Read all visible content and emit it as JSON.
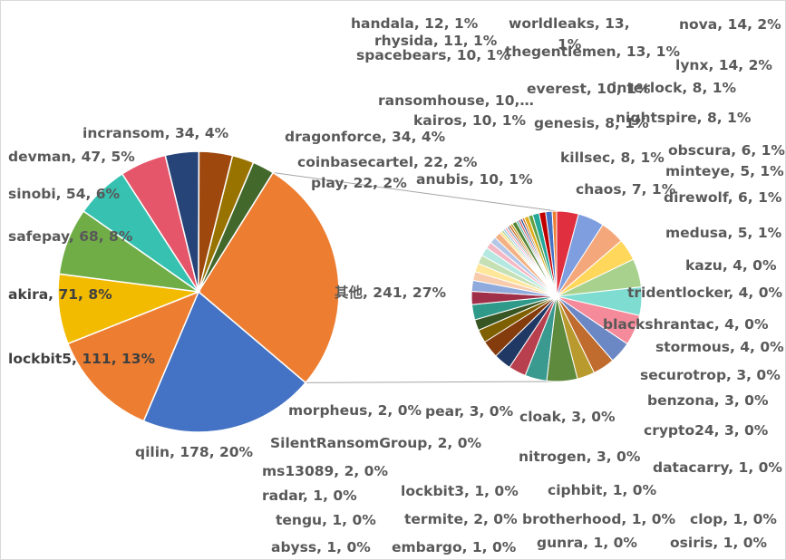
{
  "chart_data": {
    "type": "pie",
    "subtype": "pie-of-pie",
    "title": "",
    "main_pie": [
      {
        "name": "其他",
        "value": 241,
        "percent": "27%",
        "color": "#ed7d31"
      },
      {
        "name": "qilin",
        "value": 178,
        "percent": "20%",
        "color": "#4472c4"
      },
      {
        "name": "lockbit5",
        "value": 111,
        "percent": "13%",
        "color": "#ed7d31"
      },
      {
        "name": "akira",
        "value": 71,
        "percent": "8%",
        "color": "#f2bb00"
      },
      {
        "name": "safepay",
        "value": 68,
        "percent": "8%",
        "color": "#70ad47"
      },
      {
        "name": "sinobi",
        "value": 54,
        "percent": "6%",
        "color": "#36c1b1"
      },
      {
        "name": "devman",
        "value": 47,
        "percent": "5%",
        "color": "#e5566a"
      },
      {
        "name": "incransom",
        "value": 34,
        "percent": "4%",
        "color": "#264478"
      },
      {
        "name": "dragonforce",
        "value": 34,
        "percent": "4%",
        "color": "#9e480e"
      },
      {
        "name": "coinbasecartel",
        "value": 22,
        "percent": "2%",
        "color": "#997300"
      },
      {
        "name": "play",
        "value": 22,
        "percent": "2%",
        "color": "#43682b"
      }
    ],
    "secondary_pie_label": "其他",
    "secondary_pie": [
      {
        "name": "anubis",
        "value": 10,
        "percent": "1%",
        "color": "#e03040"
      },
      {
        "name": "handala",
        "value": 12,
        "percent": "1%",
        "color": "#7f9ee0"
      },
      {
        "name": "rhysida",
        "value": 11,
        "percent": "1%",
        "color": "#f4a77a"
      },
      {
        "name": "spacebears",
        "value": 10,
        "percent": "1%",
        "color": "#ffd75a"
      },
      {
        "name": "worldleaks",
        "value": 13,
        "percent": "1%",
        "color": "#a9d18e"
      },
      {
        "name": "thegentlemen",
        "value": 13,
        "percent": "1%",
        "color": "#7fdcd0"
      },
      {
        "name": "nova",
        "value": 14,
        "percent": "2%",
        "color": "#f48a9a"
      },
      {
        "name": "ransomhouse",
        "value": 10,
        "percent": "1%",
        "color": "#6c88c4"
      },
      {
        "name": "everest",
        "value": 10,
        "percent": "1%",
        "color": "#c06c2e"
      },
      {
        "name": "interlock",
        "value": 8,
        "percent": "1%",
        "color": "#b89a2e"
      },
      {
        "name": "lynx",
        "value": 14,
        "percent": "2%",
        "color": "#5e8a3e"
      },
      {
        "name": "kairos",
        "value": 10,
        "percent": "1%",
        "color": "#3a9a90"
      },
      {
        "name": "genesis",
        "value": 8,
        "percent": "1%",
        "color": "#b8404e"
      },
      {
        "name": "nightspire",
        "value": 8,
        "percent": "1%",
        "color": "#1f3864"
      },
      {
        "name": "killsec",
        "value": 8,
        "percent": "1%",
        "color": "#843c0c"
      },
      {
        "name": "obscura",
        "value": 6,
        "percent": "1%",
        "color": "#7f6000"
      },
      {
        "name": "minteye",
        "value": 5,
        "percent": "1%",
        "color": "#375623"
      },
      {
        "name": "chaos",
        "value": 7,
        "percent": "1%",
        "color": "#2f9a8a"
      },
      {
        "name": "direwolf",
        "value": 6,
        "percent": "1%",
        "color": "#a0304a"
      },
      {
        "name": "medusa",
        "value": 5,
        "percent": "1%",
        "color": "#8faadc"
      },
      {
        "name": "kazu",
        "value": 4,
        "percent": "0%",
        "color": "#f8cbad"
      },
      {
        "name": "tridentlocker",
        "value": 4,
        "percent": "0%",
        "color": "#ffe699"
      },
      {
        "name": "blackshrantac",
        "value": 4,
        "percent": "0%",
        "color": "#c5e0b4"
      },
      {
        "name": "stormous",
        "value": 4,
        "percent": "0%",
        "color": "#b4e8e0"
      },
      {
        "name": "securotrop",
        "value": 3,
        "percent": "0%",
        "color": "#f4b8c4"
      },
      {
        "name": "benzona",
        "value": 3,
        "percent": "0%",
        "color": "#b4c7e7"
      },
      {
        "name": "crypto24",
        "value": 3,
        "percent": "0%",
        "color": "#f4b183"
      },
      {
        "name": "datacarry",
        "value": 1,
        "percent": "0%",
        "color": "#ffd966"
      },
      {
        "name": "osiris",
        "value": 1,
        "percent": "0%",
        "color": "#a9d18e"
      },
      {
        "name": "clop",
        "value": 1,
        "percent": "0%",
        "color": "#9dc3e6"
      },
      {
        "name": "gunra",
        "value": 1,
        "percent": "0%",
        "color": "#f8a0b0"
      },
      {
        "name": "ciphbit",
        "value": 1,
        "percent": "0%",
        "color": "#8497b0"
      },
      {
        "name": "brotherhood",
        "value": 1,
        "percent": "0%",
        "color": "#c55a11"
      },
      {
        "name": "embargo",
        "value": 1,
        "percent": "0%",
        "color": "#bf9000"
      },
      {
        "name": "termite",
        "value": 2,
        "percent": "0%",
        "color": "#548235"
      },
      {
        "name": "lockbit3",
        "value": 1,
        "percent": "0%",
        "color": "#4fb0a5"
      },
      {
        "name": "abyss",
        "value": 1,
        "percent": "0%",
        "color": "#c94a5e"
      },
      {
        "name": "tengu",
        "value": 1,
        "percent": "0%",
        "color": "#305496"
      },
      {
        "name": "radar",
        "value": 1,
        "percent": "0%",
        "color": "#d4782a"
      },
      {
        "name": "ms13089",
        "value": 2,
        "percent": "0%",
        "color": "#e0b020"
      },
      {
        "name": "SilentRansomGroup",
        "value": 2,
        "percent": "0%",
        "color": "#63a040"
      },
      {
        "name": "nitrogen",
        "value": 3,
        "percent": "0%",
        "color": "#24a89a"
      },
      {
        "name": "cloak",
        "value": 3,
        "percent": "0%",
        "color": "#c00000"
      },
      {
        "name": "pear",
        "value": 3,
        "percent": "0%",
        "color": "#4472c4"
      },
      {
        "name": "morpheus",
        "value": 2,
        "percent": "0%",
        "color": "#ed7d31"
      }
    ],
    "labels": [
      {
        "text": "其他, 241, 27%"
      },
      {
        "text": "qilin, 178, 20%"
      },
      {
        "text": "lockbit5, 111, 13%"
      },
      {
        "text": "akira, 71, 8%"
      },
      {
        "text": "safepay, 68, 8%"
      },
      {
        "text": "sinobi, 54, 6%"
      },
      {
        "text": "devman, 47, 5%"
      },
      {
        "text": "incransom, 34, 4%"
      },
      {
        "text": "dragonforce, 34, 4%"
      },
      {
        "text": "coinbasecartel, 22, 2%"
      },
      {
        "text": "play, 22, 2%"
      },
      {
        "text": "anubis, 10, 1%"
      },
      {
        "text": "handala, 12, 1%"
      },
      {
        "text": "rhysida, 11, 1%"
      },
      {
        "text": "spacebears, 10, 1%"
      },
      {
        "text": "worldleaks, 13,"
      },
      {
        "text": "1%"
      },
      {
        "text": "thegentlemen, 13, 1%"
      },
      {
        "text": "nova, 14, 2%"
      },
      {
        "text": "lynx, 14, 2%"
      },
      {
        "text": "ransomhouse, 10,…"
      },
      {
        "text": "everest, 10, 1%"
      },
      {
        "text": "interlock, 8, 1%"
      },
      {
        "text": "kairos, 10, 1%"
      },
      {
        "text": "genesis, 8, 1%"
      },
      {
        "text": "nightspire, 8, 1%"
      },
      {
        "text": "killsec, 8, 1%"
      },
      {
        "text": "obscura, 6, 1%"
      },
      {
        "text": "minteye, 5, 1%"
      },
      {
        "text": "chaos, 7, 1%"
      },
      {
        "text": "direwolf, 6, 1%"
      },
      {
        "text": "medusa, 5, 1%"
      },
      {
        "text": "kazu, 4, 0%"
      },
      {
        "text": "tridentlocker, 4, 0%"
      },
      {
        "text": "blackshrantac, 4, 0%"
      },
      {
        "text": "stormous, 4, 0%"
      },
      {
        "text": "securotrop, 3, 0%"
      },
      {
        "text": "benzona, 3, 0%"
      },
      {
        "text": "crypto24, 3, 0%"
      },
      {
        "text": "datacarry, 1, 0%"
      },
      {
        "text": "osiris, 1, 0%"
      },
      {
        "text": "clop, 1, 0%"
      },
      {
        "text": "gunra, 1, 0%"
      },
      {
        "text": "ciphbit, 1, 0%"
      },
      {
        "text": "brotherhood, 1, 0%"
      },
      {
        "text": "embargo, 1, 0%"
      },
      {
        "text": "termite, 2, 0%"
      },
      {
        "text": "lockbit3, 1, 0%"
      },
      {
        "text": "abyss, 1, 0%"
      },
      {
        "text": "tengu, 1, 0%"
      },
      {
        "text": "radar, 1, 0%"
      },
      {
        "text": "ms13089, 2, 0%"
      },
      {
        "text": "SilentRansomGroup, 2, 0%"
      },
      {
        "text": "nitrogen, 3, 0%"
      },
      {
        "text": "cloak, 3, 0%"
      },
      {
        "text": "pear, 3, 0%"
      },
      {
        "text": "morpheus, 2, 0%"
      }
    ],
    "legend": "none",
    "grid": false
  }
}
